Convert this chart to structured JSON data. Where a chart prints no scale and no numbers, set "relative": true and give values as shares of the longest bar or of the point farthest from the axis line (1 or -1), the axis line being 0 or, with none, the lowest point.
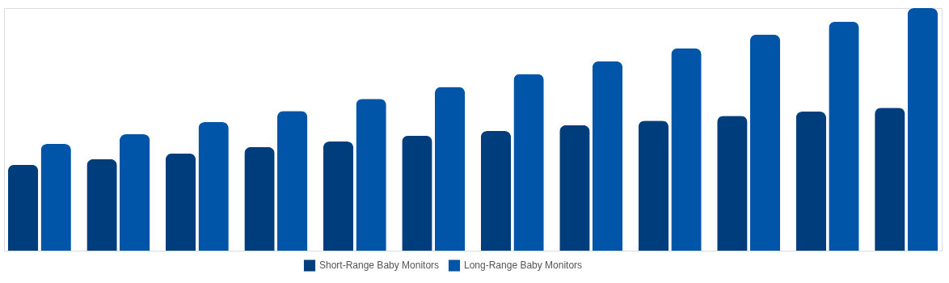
{
  "chart_data": {
    "type": "bar",
    "relative": true,
    "legend": "bottom",
    "categories": [
      null,
      null,
      null,
      null,
      null,
      null,
      null,
      null,
      null,
      null,
      null,
      null
    ],
    "series": [
      {
        "name": "Short-Range Baby Monitors",
        "color": "#003d7c",
        "values": [
          0.354,
          0.377,
          0.401,
          0.427,
          0.45,
          0.474,
          0.493,
          0.517,
          0.536,
          0.556,
          0.573,
          0.589
        ]
      },
      {
        "name": "Long-Range Baby Monitors",
        "color": "#0055a8",
        "values": [
          0.44,
          0.48,
          0.53,
          0.576,
          0.626,
          0.675,
          0.728,
          0.781,
          0.834,
          0.891,
          0.944,
          1
        ]
      }
    ]
  }
}
